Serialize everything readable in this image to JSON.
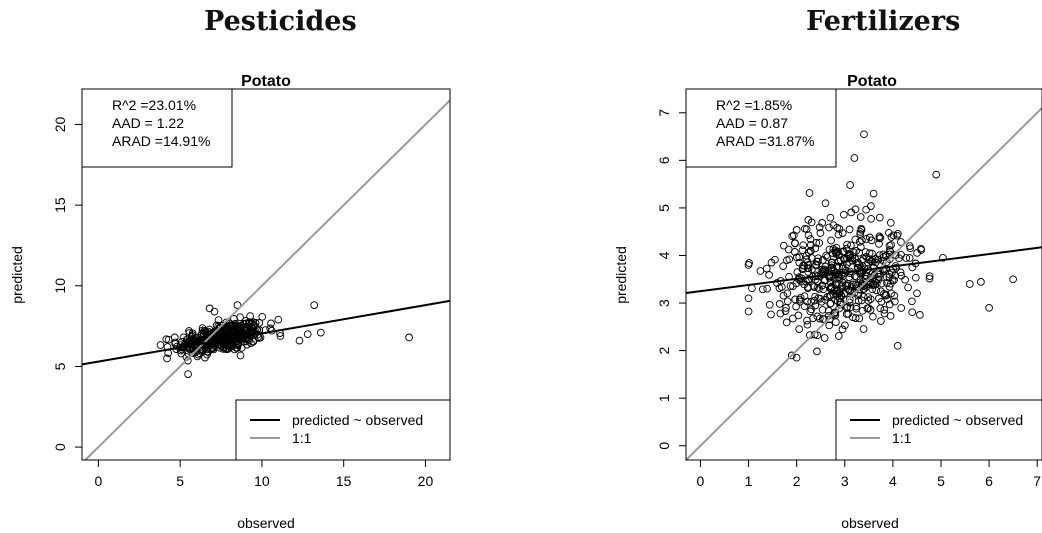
{
  "headings": {
    "left": "Pesticides",
    "right": "Fertilizers"
  },
  "chart_data": [
    {
      "type": "scatter",
      "title": "Potato",
      "xlabel": "observed",
      "ylabel": "predicted",
      "xlim": [
        -1,
        21.5
      ],
      "ylim": [
        -0.8,
        22.2
      ],
      "xticks": [
        0,
        5,
        10,
        15,
        20
      ],
      "yticks": [
        0,
        5,
        10,
        15,
        20
      ],
      "stats": [
        "R^2  =23.01%",
        "AAD = 1.22",
        "ARAD =14.91%"
      ],
      "legend_position": "bottom-right",
      "legend": [
        "predicted ~ observed",
        "1:1"
      ],
      "fit_line": {
        "intercept": 5.3,
        "slope": 0.175
      },
      "identity_line": true,
      "cluster": {
        "x_range": [
          3.8,
          12.5
        ],
        "center_x": 7.5,
        "y_center": 6.6
      },
      "outliers": [
        [
          19.0,
          6.8
        ],
        [
          13.2,
          8.8
        ],
        [
          13.6,
          7.1
        ],
        [
          12.3,
          6.6
        ],
        [
          6.8,
          8.6
        ],
        [
          8.5,
          8.8
        ],
        [
          7.1,
          8.4
        ],
        [
          11.0,
          7.9
        ],
        [
          4.2,
          5.5
        ],
        [
          12.8,
          7.0
        ]
      ],
      "n_points": 420
    },
    {
      "type": "scatter",
      "title": "Potato",
      "xlabel": "observed",
      "ylabel": "predicted",
      "xlim": [
        -0.3,
        7.1
      ],
      "ylim": [
        -0.3,
        7.5
      ],
      "xticks": [
        0,
        1,
        2,
        3,
        4,
        5,
        6,
        7
      ],
      "yticks": [
        0,
        1,
        2,
        3,
        4,
        5,
        6,
        7
      ],
      "stats": [
        "R^2  =1.85%",
        "AAD = 0.87",
        "ARAD =31.87%"
      ],
      "legend_position": "bottom-right",
      "legend": [
        "predicted ~ observed",
        "1:1"
      ],
      "fit_line": {
        "intercept": 3.25,
        "slope": 0.13
      },
      "identity_line": true,
      "cluster": {
        "x_range": [
          1.0,
          6.5
        ],
        "center_x": 3.0,
        "y_center": 3.6
      },
      "outliers": [
        [
          3.4,
          6.55
        ],
        [
          3.2,
          6.05
        ],
        [
          4.9,
          5.7
        ],
        [
          6.5,
          3.5
        ],
        [
          6.0,
          2.9
        ],
        [
          4.1,
          2.1
        ],
        [
          1.0,
          3.1
        ],
        [
          1.9,
          1.9
        ],
        [
          2.0,
          1.85
        ],
        [
          5.6,
          3.4
        ],
        [
          3.6,
          5.3
        ],
        [
          2.6,
          5.1
        ]
      ],
      "n_points": 480
    }
  ]
}
